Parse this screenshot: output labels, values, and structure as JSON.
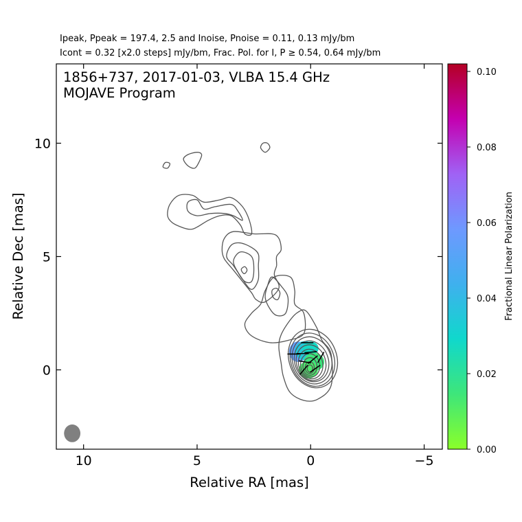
{
  "header": {
    "line1": "Ipeak, Ppeak = 197.4, 2.5 and Inoise, Pnoise = 0.11, 0.13 mJy/bm",
    "line2": "Icont = 0.32 [x2.0 steps] mJy/bm, Frac. Pol. for I, P ≥ 0.54, 0.64 mJy/bm"
  },
  "colors": {
    "contour": "#555555",
    "beam": "#808080",
    "colormap": [
      "#8aff2a",
      "#3ee67a",
      "#10d8cc",
      "#3fb0ee",
      "#6e99ff",
      "#a062f5",
      "#c400b0",
      "#b40024"
    ]
  },
  "chart_data": {
    "type": "contour",
    "title": "1856+737, 2017-01-03, VLBA 15.4 GHz",
    "subtitle": "MOJAVE Program",
    "xlabel": "Relative RA [mas]",
    "ylabel": "Relative Dec [mas]",
    "xlim": [
      11.2,
      -5.8
    ],
    "ylim": [
      -3.5,
      13.5
    ],
    "xticks": [
      10,
      5,
      0,
      -5
    ],
    "xtick_labels": [
      "10",
      "5",
      "0",
      "−5"
    ],
    "yticks": [
      0,
      5,
      10
    ],
    "ytick_labels": [
      "0",
      "5",
      "10"
    ],
    "peak_mjy_per_beam": 197.4,
    "polarized_peak_mjy_per_beam": 2.5,
    "noise_i": 0.11,
    "noise_p": 0.13,
    "lowest_contour": 0.32,
    "contour_step": 2.0,
    "pol_cutoff_i": 0.54,
    "pol_cutoff_p": 0.64,
    "beam": {
      "x": 10.5,
      "y": -2.8,
      "major_mas": 0.72,
      "minor_mas": 0.68
    },
    "core_contours": [
      {
        "cx": -0.1,
        "cy": 0.5,
        "rx": 1.05,
        "ry": 1.32,
        "angle": -20
      },
      {
        "cx": -0.08,
        "cy": 0.45,
        "rx": 0.95,
        "ry": 1.2,
        "angle": -20
      },
      {
        "cx": -0.06,
        "cy": 0.42,
        "rx": 0.85,
        "ry": 1.06,
        "angle": -20
      },
      {
        "cx": -0.04,
        "cy": 0.38,
        "rx": 0.74,
        "ry": 0.92,
        "angle": -20
      },
      {
        "cx": -0.02,
        "cy": 0.32,
        "rx": 0.64,
        "ry": 0.8,
        "angle": -18
      },
      {
        "cx": 0.0,
        "cy": 0.26,
        "rx": 0.53,
        "ry": 0.66,
        "angle": -15
      },
      {
        "cx": 0.02,
        "cy": 0.2,
        "rx": 0.42,
        "ry": 0.52,
        "angle": -10
      },
      {
        "cx": 0.03,
        "cy": 0.15,
        "rx": 0.31,
        "ry": 0.39,
        "angle": 0
      },
      {
        "cx": 0.04,
        "cy": 0.1,
        "rx": 0.2,
        "ry": 0.26,
        "angle": 0
      },
      {
        "cx": 0.03,
        "cy": 0.06,
        "rx": 0.12,
        "ry": 0.16,
        "angle": 0
      }
    ],
    "jet_contours": [
      [
        [
          -0.9,
          -0.7
        ],
        [
          -0.9,
          0.7
        ],
        [
          -0.5,
          1.3
        ],
        [
          -0.25,
          1.9
        ],
        [
          0.2,
          2.6
        ],
        [
          0.55,
          2.55
        ],
        [
          0.9,
          2.2
        ],
        [
          1.3,
          1.55
        ],
        [
          1.4,
          1.0
        ],
        [
          1.3,
          0.3
        ],
        [
          1.2,
          -0.3
        ],
        [
          0.9,
          -1.0
        ],
        [
          0.3,
          -1.35
        ],
        [
          -0.3,
          -1.3
        ]
      ],
      [
        [
          0.3,
          1.6
        ],
        [
          0.3,
          2.5
        ],
        [
          0.7,
          2.9
        ],
        [
          0.7,
          3.5
        ],
        [
          0.9,
          4.1
        ],
        [
          1.6,
          4.1
        ],
        [
          2.0,
          3.5
        ],
        [
          2.2,
          2.9
        ],
        [
          2.6,
          2.5
        ],
        [
          2.9,
          2.0
        ],
        [
          2.6,
          1.5
        ],
        [
          1.8,
          1.2
        ],
        [
          1.0,
          1.3
        ]
      ],
      [
        [
          1.1,
          2.5
        ],
        [
          1.0,
          3.2
        ],
        [
          1.3,
          3.7
        ],
        [
          1.7,
          4.1
        ],
        [
          1.9,
          3.7
        ],
        [
          2.0,
          3.2
        ],
        [
          1.8,
          2.7
        ],
        [
          1.5,
          2.4
        ]
      ],
      [
        [
          1.45,
          3.1
        ],
        [
          1.35,
          3.4
        ],
        [
          1.5,
          3.6
        ],
        [
          1.7,
          3.5
        ],
        [
          1.65,
          3.2
        ]
      ],
      [
        [
          1.4,
          3.6
        ],
        [
          1.6,
          4.2
        ],
        [
          1.5,
          4.6
        ],
        [
          1.5,
          5.0
        ],
        [
          1.3,
          5.3
        ],
        [
          1.4,
          5.8
        ],
        [
          1.7,
          6.0
        ],
        [
          2.5,
          6.0
        ],
        [
          3.4,
          6.1
        ],
        [
          3.8,
          5.8
        ],
        [
          3.9,
          5.3
        ],
        [
          3.8,
          4.9
        ],
        [
          3.4,
          4.4
        ],
        [
          3.0,
          3.9
        ],
        [
          2.6,
          3.4
        ],
        [
          2.4,
          3.1
        ],
        [
          2.0,
          3.0
        ]
      ],
      [
        [
          2.5,
          3.6
        ],
        [
          2.3,
          4.0
        ],
        [
          2.3,
          4.6
        ],
        [
          2.3,
          5.1
        ],
        [
          2.6,
          5.4
        ],
        [
          3.1,
          5.6
        ],
        [
          3.5,
          5.5
        ],
        [
          3.7,
          5.0
        ],
        [
          3.4,
          4.6
        ],
        [
          3.0,
          4.0
        ],
        [
          2.7,
          3.6
        ]
      ],
      [
        [
          2.6,
          3.9
        ],
        [
          2.5,
          4.4
        ],
        [
          2.6,
          5.0
        ],
        [
          3.1,
          5.2
        ],
        [
          3.4,
          4.8
        ],
        [
          3.2,
          4.3
        ],
        [
          2.9,
          3.9
        ]
      ],
      [
        [
          2.9,
          4.25
        ],
        [
          2.8,
          4.4
        ],
        [
          2.9,
          4.55
        ],
        [
          3.05,
          4.45
        ],
        [
          3.0,
          4.3
        ]
      ],
      [
        [
          2.6,
          6.0
        ],
        [
          2.7,
          6.6
        ],
        [
          3.0,
          7.2
        ],
        [
          3.5,
          7.6
        ],
        [
          4.0,
          7.5
        ],
        [
          4.7,
          7.4
        ],
        [
          5.2,
          7.7
        ],
        [
          5.8,
          7.7
        ],
        [
          6.2,
          7.3
        ],
        [
          6.3,
          6.8
        ],
        [
          6.1,
          6.5
        ],
        [
          5.7,
          6.3
        ],
        [
          5.3,
          6.2
        ],
        [
          5.0,
          6.3
        ],
        [
          4.5,
          6.6
        ],
        [
          4.0,
          6.8
        ],
        [
          3.5,
          6.8
        ],
        [
          3.1,
          6.4
        ],
        [
          2.9,
          6.0
        ]
      ],
      [
        [
          3.0,
          6.6
        ],
        [
          3.2,
          7.0
        ],
        [
          3.5,
          7.3
        ],
        [
          4.2,
          7.2
        ],
        [
          4.7,
          7.1
        ],
        [
          5.0,
          7.5
        ],
        [
          5.4,
          7.4
        ],
        [
          5.4,
          7.0
        ],
        [
          5.0,
          6.8
        ],
        [
          4.4,
          6.9
        ],
        [
          3.8,
          6.9
        ],
        [
          3.4,
          6.8
        ]
      ],
      [
        [
          4.9,
          9.2
        ],
        [
          4.8,
          9.5
        ],
        [
          5.0,
          9.6
        ],
        [
          5.4,
          9.5
        ],
        [
          5.6,
          9.3
        ],
        [
          5.4,
          9.0
        ],
        [
          5.1,
          8.9
        ]
      ],
      [
        [
          6.3,
          8.9
        ],
        [
          6.2,
          9.1
        ],
        [
          6.4,
          9.15
        ],
        [
          6.5,
          8.95
        ]
      ],
      [
        [
          1.8,
          9.8
        ],
        [
          1.9,
          10.0
        ],
        [
          2.1,
          10.0
        ],
        [
          2.2,
          9.8
        ],
        [
          2.0,
          9.6
        ]
      ]
    ],
    "polarization_blobs": [
      {
        "x": 0.55,
        "y": 0.8,
        "rx": 0.4,
        "ry": 0.45,
        "frac": 0.055
      },
      {
        "x": 0.25,
        "y": 0.85,
        "rx": 0.45,
        "ry": 0.42,
        "frac": 0.035
      },
      {
        "x": 0.0,
        "y": 0.95,
        "rx": 0.35,
        "ry": 0.3,
        "frac": 0.028
      },
      {
        "x": -0.15,
        "y": 0.35,
        "rx": 0.45,
        "ry": 0.4,
        "frac": 0.015
      },
      {
        "x": 0.1,
        "y": 0.0,
        "rx": 0.42,
        "ry": 0.38,
        "frac": 0.012
      }
    ],
    "evpa_ticks": [
      {
        "x": 0.75,
        "y": 0.7,
        "angle": 0
      },
      {
        "x": 0.35,
        "y": 0.72,
        "angle": 0
      },
      {
        "x": 0.0,
        "y": 0.78,
        "angle": 5
      },
      {
        "x": 0.15,
        "y": 1.2,
        "angle": 0
      },
      {
        "x": -0.45,
        "y": 0.55,
        "angle": 60
      },
      {
        "x": -0.1,
        "y": 0.45,
        "angle": 40
      },
      {
        "x": 0.25,
        "y": 0.35,
        "angle": -10
      },
      {
        "x": 0.3,
        "y": 0.0,
        "angle": 50
      },
      {
        "x": -0.2,
        "y": 0.05,
        "angle": 35
      }
    ],
    "colorbar": {
      "label": "Fractional Linear Polarization",
      "ticks": [
        0.0,
        0.02,
        0.04,
        0.06,
        0.08,
        0.1
      ],
      "tick_labels": [
        "0.00",
        "0.02",
        "0.04",
        "0.06",
        "0.08",
        "0.10"
      ],
      "range": [
        0.0,
        0.102
      ]
    }
  }
}
